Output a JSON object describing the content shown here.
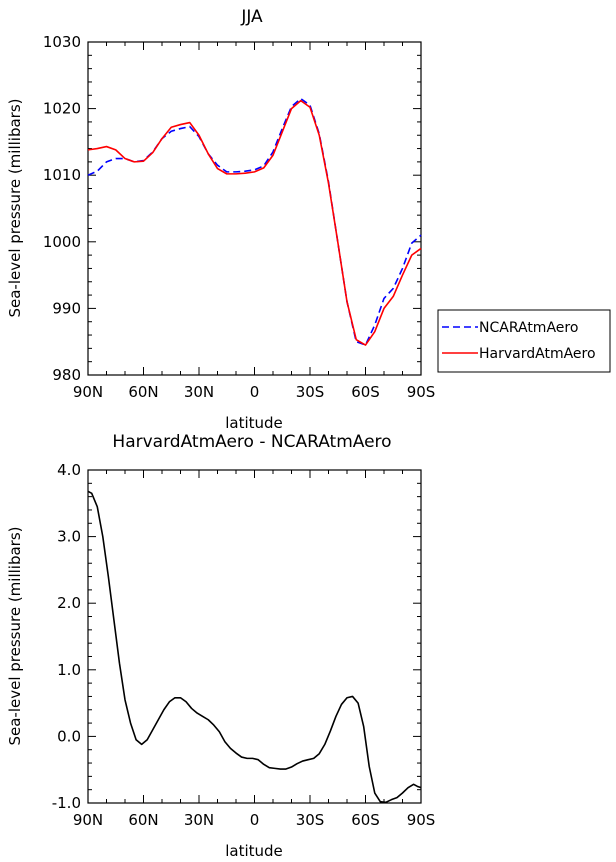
{
  "chart_data": [
    {
      "type": "line",
      "title": "JJA",
      "xlabel": "latitude",
      "ylabel": "Sea-level pressure (millibars)",
      "xlim": [
        -90,
        90
      ],
      "ylim": [
        980,
        1030
      ],
      "xticks": [
        -90,
        -60,
        -30,
        0,
        30,
        60,
        90
      ],
      "xticklabels": [
        "90N",
        "60N",
        "30N",
        "0",
        "30S",
        "60S",
        "90S"
      ],
      "yticks": [
        980,
        990,
        1000,
        1010,
        1020,
        1030
      ],
      "yticklabels": [
        "980",
        "990",
        "1000",
        "1010",
        "1020",
        "1030"
      ],
      "grid": false,
      "legend": "right",
      "x": [
        -90,
        -85,
        -80,
        -75,
        -70,
        -65,
        -60,
        -55,
        -50,
        -45,
        -40,
        -35,
        -30,
        -25,
        -20,
        -15,
        -10,
        -5,
        0,
        5,
        10,
        15,
        20,
        25,
        30,
        35,
        40,
        45,
        50,
        55,
        60,
        65,
        70,
        75,
        80,
        85,
        90
      ],
      "series": [
        {
          "name": "NCARAtmAero",
          "color": "#0000ff",
          "dash": "dashed",
          "values": [
            1010.0,
            1010.6,
            1012.0,
            1012.5,
            1012.5,
            1012.0,
            1012.2,
            1013.5,
            1015.5,
            1016.6,
            1017.0,
            1017.3,
            1015.8,
            1013.2,
            1011.5,
            1010.5,
            1010.5,
            1010.6,
            1010.8,
            1011.4,
            1013.5,
            1017.0,
            1020.3,
            1021.5,
            1020.5,
            1016.2,
            1009.0,
            1000.0,
            991.0,
            985.0,
            984.5,
            987.5,
            991.5,
            993.0,
            996.0,
            999.8,
            1001.0
          ]
        },
        {
          "name": "HarvardAtmAero",
          "color": "#ff0000",
          "dash": "solid",
          "values": [
            1013.8,
            1014.0,
            1014.3,
            1013.8,
            1012.5,
            1012.0,
            1012.1,
            1013.4,
            1015.5,
            1017.2,
            1017.6,
            1017.9,
            1016.0,
            1013.2,
            1011.0,
            1010.2,
            1010.2,
            1010.3,
            1010.5,
            1011.1,
            1013.0,
            1016.5,
            1020.0,
            1021.2,
            1020.2,
            1016.0,
            1008.8,
            1000.0,
            991.0,
            985.3,
            984.5,
            986.5,
            990.0,
            991.8,
            995.0,
            998.0,
            999.0
          ]
        }
      ]
    },
    {
      "type": "line",
      "title": "HarvardAtmAero - NCARAtmAero",
      "xlabel": "latitude",
      "ylabel": "Sea-level pressure (millibars)",
      "xlim": [
        -90,
        90
      ],
      "ylim": [
        -1.0,
        4.0
      ],
      "xticks": [
        -90,
        -60,
        -30,
        0,
        30,
        60,
        90
      ],
      "xticklabels": [
        "90N",
        "60N",
        "30N",
        "0",
        "30S",
        "60S",
        "90S"
      ],
      "yticks": [
        -1.0,
        0.0,
        1.0,
        2.0,
        3.0,
        4.0
      ],
      "yticklabels": [
        "-1.0",
        "0.0",
        "1.0",
        "2.0",
        "3.0",
        "4.0"
      ],
      "grid": false,
      "x": [
        -90,
        -88,
        -85,
        -82,
        -79,
        -76,
        -73,
        -70,
        -67,
        -64,
        -61,
        -58,
        -55,
        -52,
        -49,
        -46,
        -43,
        -40,
        -37,
        -34,
        -31,
        -28,
        -25,
        -22,
        -19,
        -16,
        -13,
        -10,
        -7,
        -4,
        -1,
        2,
        5,
        8,
        11,
        14,
        17,
        20,
        23,
        26,
        29,
        32,
        35,
        38,
        41,
        44,
        47,
        50,
        53,
        56,
        59,
        62,
        65,
        68,
        71,
        74,
        77,
        80,
        83,
        86,
        88,
        90
      ],
      "series": [
        {
          "name": "",
          "color": "#000000",
          "dash": "solid",
          "values": [
            3.68,
            3.65,
            3.45,
            3.0,
            2.4,
            1.75,
            1.1,
            0.55,
            0.2,
            -0.05,
            -0.12,
            -0.05,
            0.1,
            0.25,
            0.4,
            0.52,
            0.58,
            0.58,
            0.52,
            0.42,
            0.35,
            0.3,
            0.25,
            0.17,
            0.07,
            -0.08,
            -0.18,
            -0.25,
            -0.31,
            -0.33,
            -0.33,
            -0.35,
            -0.42,
            -0.47,
            -0.48,
            -0.49,
            -0.49,
            -0.46,
            -0.41,
            -0.37,
            -0.35,
            -0.33,
            -0.26,
            -0.12,
            0.08,
            0.3,
            0.48,
            0.58,
            0.6,
            0.5,
            0.15,
            -0.45,
            -0.85,
            -0.98,
            -0.99,
            -0.95,
            -0.92,
            -0.85,
            -0.77,
            -0.72,
            -0.75,
            -0.77
          ]
        }
      ]
    }
  ]
}
